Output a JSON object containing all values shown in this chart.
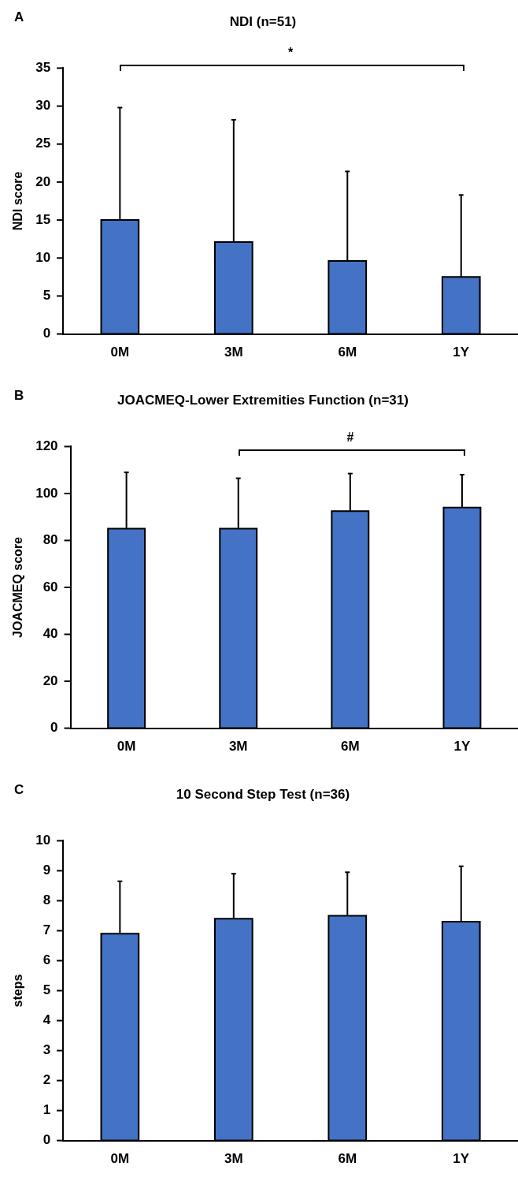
{
  "chart_data": [
    {
      "type": "bar",
      "title": "NDI (n=51)",
      "ylabel": "NDI score",
      "categories": [
        "0M",
        "3M",
        "6M",
        "1Y"
      ],
      "values": [
        15.0,
        12.1,
        9.6,
        7.5
      ],
      "errors": [
        [
          15.0,
          29.8
        ],
        [
          12.1,
          28.2
        ],
        [
          9.6,
          21.4
        ],
        [
          7.5,
          18.3
        ]
      ],
      "color": "#4472c4",
      "ylim": [
        0,
        35
      ],
      "yticks": [
        0,
        5,
        10,
        15,
        20,
        25,
        30,
        35
      ],
      "grid": false,
      "legend": false,
      "annotations": [
        "A",
        "*"
      ]
    },
    {
      "type": "bar",
      "title": "JOACMEQ-Lower Extremities Function (n=31)",
      "ylabel": "JOACMEQ score",
      "categories": [
        "0M",
        "3M",
        "6M",
        "1Y"
      ],
      "values": [
        85,
        85,
        92.5,
        94
      ],
      "errors": [
        [
          85,
          109
        ],
        [
          85,
          106.5
        ],
        [
          92.5,
          108.5
        ],
        [
          94,
          108
        ]
      ],
      "color": "#4472c4",
      "ylim": [
        0,
        120
      ],
      "yticks": [
        0,
        20,
        40,
        60,
        80,
        100,
        120
      ],
      "grid": false,
      "legend": false,
      "annotations": [
        "B",
        "#"
      ]
    },
    {
      "type": "bar",
      "title": "10 Second Step Test (n=36)",
      "ylabel": "steps",
      "categories": [
        "0M",
        "3M",
        "6M",
        "1Y"
      ],
      "values": [
        6.9,
        7.4,
        7.5,
        7.3
      ],
      "errors": [
        [
          6.9,
          8.65
        ],
        [
          7.4,
          8.9
        ],
        [
          7.5,
          8.95
        ],
        [
          7.3,
          9.15
        ]
      ],
      "color": "#4472c4",
      "ylim": [
        0,
        10
      ],
      "yticks": [
        0,
        1,
        2,
        3,
        4,
        5,
        6,
        7,
        8,
        9,
        10
      ],
      "grid": false,
      "legend": false,
      "annotations": [
        "C"
      ]
    }
  ]
}
